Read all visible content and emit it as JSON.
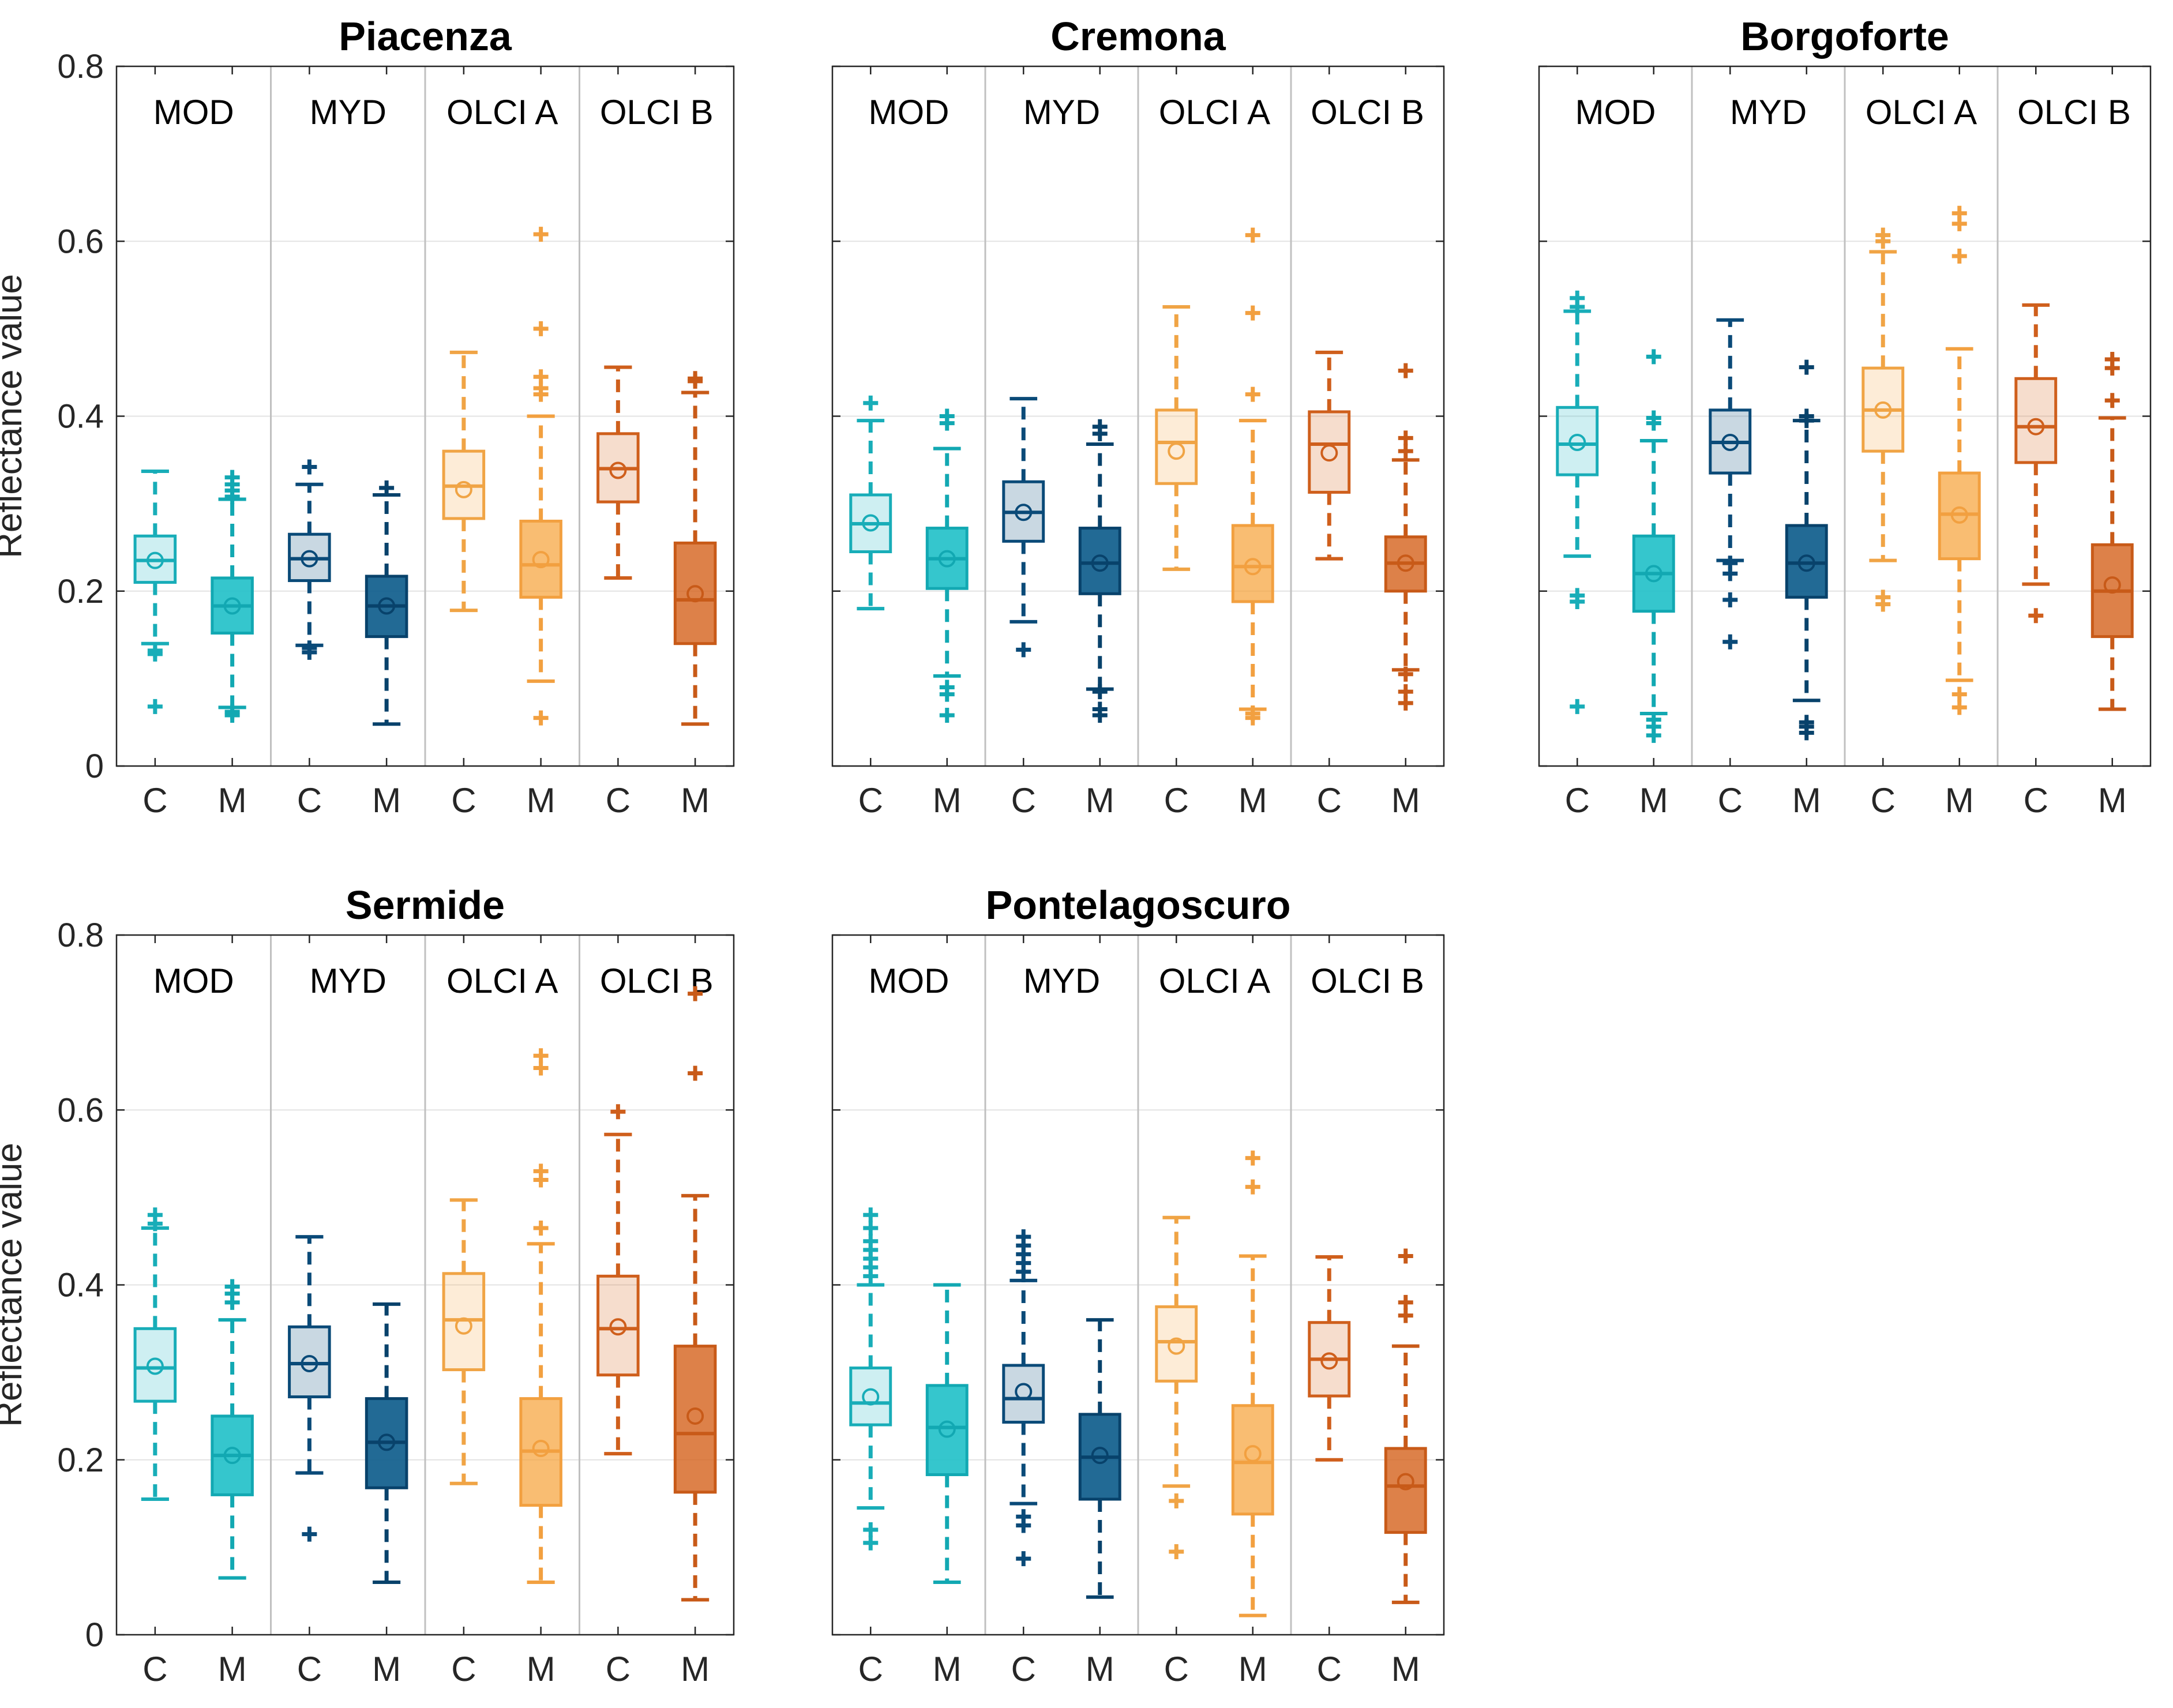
{
  "figure": {
    "ylabel": "Reflectance value",
    "group_labels": [
      "MOD",
      "MYD",
      "OLCI A",
      "OLCI B"
    ],
    "box_labels": [
      "C",
      "M"
    ]
  },
  "colors": {
    "MOD_C": "#21b8c4",
    "MOD_M": "#1fc0c8",
    "MYD_C": "#0b4d7d",
    "MYD_M": "#0a5a8a",
    "OLCIA_C": "#f5a94a",
    "OLCIA_M": "#f7a43b",
    "OLCIB_C": "#d4621c",
    "OLCIB_M": "#d4621c",
    "separator": "#c0c0c0",
    "grid": "#e3e3e3",
    "axis": "#262626"
  },
  "chart_data": [
    {
      "type": "boxplot",
      "title": "Piacenza",
      "ylabel": "Reflectance value",
      "ylim": [
        0,
        0.8
      ],
      "yticks": [
        "0",
        "0.2",
        "0.4",
        "0.6",
        "0.8"
      ],
      "categories": [
        "C",
        "M",
        "C",
        "M",
        "C",
        "M",
        "C",
        "M"
      ],
      "groups": [
        "MOD",
        "MYD",
        "OLCI A",
        "OLCI B"
      ],
      "boxes": [
        {
          "group": "MOD",
          "label": "C",
          "q1": 0.21,
          "median": 0.235,
          "q3": 0.263,
          "mean": 0.235,
          "whisker_low": 0.14,
          "whisker_high": 0.337,
          "outliers": [
            0.132,
            0.128,
            0.068
          ]
        },
        {
          "group": "MOD",
          "label": "M",
          "q1": 0.152,
          "median": 0.183,
          "q3": 0.215,
          "mean": 0.183,
          "whisker_low": 0.067,
          "whisker_high": 0.305,
          "outliers": [
            0.33,
            0.322,
            0.315,
            0.308,
            0.062,
            0.058
          ]
        },
        {
          "group": "MYD",
          "label": "C",
          "q1": 0.212,
          "median": 0.237,
          "q3": 0.265,
          "mean": 0.237,
          "whisker_low": 0.138,
          "whisker_high": 0.322,
          "outliers": [
            0.342,
            0.135,
            0.13
          ]
        },
        {
          "group": "MYD",
          "label": "M",
          "q1": 0.148,
          "median": 0.183,
          "q3": 0.217,
          "mean": 0.183,
          "whisker_low": 0.048,
          "whisker_high": 0.31,
          "outliers": [
            0.318
          ]
        },
        {
          "group": "OLCI A",
          "label": "C",
          "q1": 0.283,
          "median": 0.32,
          "q3": 0.36,
          "mean": 0.316,
          "whisker_low": 0.178,
          "whisker_high": 0.473,
          "outliers": []
        },
        {
          "group": "OLCI A",
          "label": "M",
          "q1": 0.193,
          "median": 0.23,
          "q3": 0.28,
          "mean": 0.236,
          "whisker_low": 0.097,
          "whisker_high": 0.4,
          "outliers": [
            0.608,
            0.5,
            0.445,
            0.432,
            0.425,
            0.055
          ]
        },
        {
          "group": "OLCI B",
          "label": "C",
          "q1": 0.302,
          "median": 0.34,
          "q3": 0.38,
          "mean": 0.338,
          "whisker_low": 0.215,
          "whisker_high": 0.456,
          "outliers": []
        },
        {
          "group": "OLCI B",
          "label": "M",
          "q1": 0.14,
          "median": 0.19,
          "q3": 0.255,
          "mean": 0.197,
          "whisker_low": 0.048,
          "whisker_high": 0.427,
          "outliers": [
            0.443,
            0.44
          ]
        }
      ]
    },
    {
      "type": "boxplot",
      "title": "Cremona",
      "ylabel": "",
      "ylim": [
        0,
        0.8
      ],
      "yticks": [],
      "categories": [
        "C",
        "M",
        "C",
        "M",
        "C",
        "M",
        "C",
        "M"
      ],
      "groups": [
        "MOD",
        "MYD",
        "OLCI A",
        "OLCI B"
      ],
      "boxes": [
        {
          "group": "MOD",
          "label": "C",
          "q1": 0.245,
          "median": 0.277,
          "q3": 0.31,
          "mean": 0.278,
          "whisker_low": 0.18,
          "whisker_high": 0.395,
          "outliers": [
            0.415
          ]
        },
        {
          "group": "MOD",
          "label": "M",
          "q1": 0.203,
          "median": 0.237,
          "q3": 0.272,
          "mean": 0.237,
          "whisker_low": 0.103,
          "whisker_high": 0.363,
          "outliers": [
            0.4,
            0.392,
            0.09,
            0.082,
            0.058
          ]
        },
        {
          "group": "MYD",
          "label": "C",
          "q1": 0.257,
          "median": 0.29,
          "q3": 0.325,
          "mean": 0.29,
          "whisker_low": 0.165,
          "whisker_high": 0.42,
          "outliers": [
            0.133
          ]
        },
        {
          "group": "MYD",
          "label": "M",
          "q1": 0.197,
          "median": 0.232,
          "q3": 0.272,
          "mean": 0.232,
          "whisker_low": 0.088,
          "whisker_high": 0.368,
          "outliers": [
            0.388,
            0.38,
            0.085,
            0.065,
            0.058
          ]
        },
        {
          "group": "OLCI A",
          "label": "C",
          "q1": 0.323,
          "median": 0.37,
          "q3": 0.407,
          "mean": 0.36,
          "whisker_low": 0.225,
          "whisker_high": 0.525,
          "outliers": []
        },
        {
          "group": "OLCI A",
          "label": "M",
          "q1": 0.188,
          "median": 0.228,
          "q3": 0.275,
          "mean": 0.228,
          "whisker_low": 0.065,
          "whisker_high": 0.395,
          "outliers": [
            0.607,
            0.518,
            0.425,
            0.06,
            0.055
          ]
        },
        {
          "group": "OLCI B",
          "label": "C",
          "q1": 0.313,
          "median": 0.368,
          "q3": 0.405,
          "mean": 0.358,
          "whisker_low": 0.237,
          "whisker_high": 0.473,
          "outliers": []
        },
        {
          "group": "OLCI B",
          "label": "M",
          "q1": 0.2,
          "median": 0.232,
          "q3": 0.262,
          "mean": 0.232,
          "whisker_low": 0.11,
          "whisker_high": 0.35,
          "outliers": [
            0.452,
            0.375,
            0.36,
            0.105,
            0.085,
            0.072
          ]
        }
      ]
    },
    {
      "type": "boxplot",
      "title": "Borgoforte",
      "ylabel": "",
      "ylim": [
        0,
        0.8
      ],
      "yticks": [],
      "categories": [
        "C",
        "M",
        "C",
        "M",
        "C",
        "M",
        "C",
        "M"
      ],
      "groups": [
        "MOD",
        "MYD",
        "OLCI A",
        "OLCI B"
      ],
      "boxes": [
        {
          "group": "MOD",
          "label": "C",
          "q1": 0.333,
          "median": 0.368,
          "q3": 0.41,
          "mean": 0.37,
          "whisker_low": 0.24,
          "whisker_high": 0.52,
          "outliers": [
            0.535,
            0.525,
            0.195,
            0.188,
            0.068
          ]
        },
        {
          "group": "MOD",
          "label": "M",
          "q1": 0.177,
          "median": 0.22,
          "q3": 0.263,
          "mean": 0.22,
          "whisker_low": 0.06,
          "whisker_high": 0.372,
          "outliers": [
            0.468,
            0.398,
            0.392,
            0.053,
            0.045,
            0.035
          ]
        },
        {
          "group": "MYD",
          "label": "C",
          "q1": 0.335,
          "median": 0.37,
          "q3": 0.407,
          "mean": 0.37,
          "whisker_low": 0.235,
          "whisker_high": 0.51,
          "outliers": [
            0.232,
            0.22,
            0.19,
            0.142
          ]
        },
        {
          "group": "MYD",
          "label": "M",
          "q1": 0.193,
          "median": 0.232,
          "q3": 0.275,
          "mean": 0.232,
          "whisker_low": 0.075,
          "whisker_high": 0.395,
          "outliers": [
            0.456,
            0.4,
            0.395,
            0.05,
            0.045,
            0.038
          ]
        },
        {
          "group": "OLCI A",
          "label": "C",
          "q1": 0.36,
          "median": 0.407,
          "q3": 0.455,
          "mean": 0.407,
          "whisker_low": 0.235,
          "whisker_high": 0.588,
          "outliers": [
            0.607,
            0.6,
            0.193,
            0.185
          ]
        },
        {
          "group": "OLCI A",
          "label": "M",
          "q1": 0.237,
          "median": 0.288,
          "q3": 0.335,
          "mean": 0.287,
          "whisker_low": 0.098,
          "whisker_high": 0.477,
          "outliers": [
            0.632,
            0.62,
            0.583,
            0.082,
            0.067
          ]
        },
        {
          "group": "OLCI B",
          "label": "C",
          "q1": 0.347,
          "median": 0.388,
          "q3": 0.443,
          "mean": 0.388,
          "whisker_low": 0.208,
          "whisker_high": 0.527,
          "outliers": [
            0.172
          ]
        },
        {
          "group": "OLCI B",
          "label": "M",
          "q1": 0.148,
          "median": 0.2,
          "q3": 0.253,
          "mean": 0.207,
          "whisker_low": 0.065,
          "whisker_high": 0.398,
          "outliers": [
            0.465,
            0.455,
            0.418
          ]
        }
      ]
    },
    {
      "type": "boxplot",
      "title": "Sermide",
      "ylabel": "Reflectance value",
      "ylim": [
        0,
        0.8
      ],
      "yticks": [
        "0",
        "0.2",
        "0.4",
        "0.6",
        "0.8"
      ],
      "categories": [
        "C",
        "M",
        "C",
        "M",
        "C",
        "M",
        "C",
        "M"
      ],
      "groups": [
        "MOD",
        "MYD",
        "OLCI A",
        "OLCI B"
      ],
      "boxes": [
        {
          "group": "MOD",
          "label": "C",
          "q1": 0.267,
          "median": 0.305,
          "q3": 0.35,
          "mean": 0.307,
          "whisker_low": 0.155,
          "whisker_high": 0.465,
          "outliers": [
            0.48,
            0.47
          ]
        },
        {
          "group": "MOD",
          "label": "M",
          "q1": 0.16,
          "median": 0.205,
          "q3": 0.25,
          "mean": 0.205,
          "whisker_low": 0.065,
          "whisker_high": 0.36,
          "outliers": [
            0.398,
            0.39,
            0.38
          ]
        },
        {
          "group": "MYD",
          "label": "C",
          "q1": 0.272,
          "median": 0.31,
          "q3": 0.352,
          "mean": 0.31,
          "whisker_low": 0.185,
          "whisker_high": 0.455,
          "outliers": [
            0.115
          ]
        },
        {
          "group": "MYD",
          "label": "M",
          "q1": 0.168,
          "median": 0.22,
          "q3": 0.27,
          "mean": 0.22,
          "whisker_low": 0.06,
          "whisker_high": 0.378,
          "outliers": []
        },
        {
          "group": "OLCI A",
          "label": "C",
          "q1": 0.303,
          "median": 0.36,
          "q3": 0.413,
          "mean": 0.353,
          "whisker_low": 0.173,
          "whisker_high": 0.497,
          "outliers": []
        },
        {
          "group": "OLCI A",
          "label": "M",
          "q1": 0.148,
          "median": 0.21,
          "q3": 0.27,
          "mean": 0.213,
          "whisker_low": 0.06,
          "whisker_high": 0.447,
          "outliers": [
            0.662,
            0.648,
            0.53,
            0.52,
            0.465
          ]
        },
        {
          "group": "OLCI B",
          "label": "C",
          "q1": 0.297,
          "median": 0.35,
          "q3": 0.41,
          "mean": 0.352,
          "whisker_low": 0.207,
          "whisker_high": 0.572,
          "outliers": [
            0.598
          ]
        },
        {
          "group": "OLCI B",
          "label": "M",
          "q1": 0.163,
          "median": 0.23,
          "q3": 0.33,
          "mean": 0.25,
          "whisker_low": 0.04,
          "whisker_high": 0.502,
          "outliers": [
            0.733,
            0.642
          ]
        }
      ]
    },
    {
      "type": "boxplot",
      "title": "Pontelagoscuro",
      "ylabel": "",
      "ylim": [
        0,
        0.8
      ],
      "yticks": [],
      "categories": [
        "C",
        "M",
        "C",
        "M",
        "C",
        "M",
        "C",
        "M"
      ],
      "groups": [
        "MOD",
        "MYD",
        "OLCI A",
        "OLCI B"
      ],
      "boxes": [
        {
          "group": "MOD",
          "label": "C",
          "q1": 0.24,
          "median": 0.265,
          "q3": 0.305,
          "mean": 0.272,
          "whisker_low": 0.145,
          "whisker_high": 0.4,
          "outliers": [
            0.48,
            0.465,
            0.45,
            0.44,
            0.43,
            0.42,
            0.41,
            0.12,
            0.105
          ]
        },
        {
          "group": "MOD",
          "label": "M",
          "q1": 0.183,
          "median": 0.237,
          "q3": 0.285,
          "mean": 0.235,
          "whisker_low": 0.06,
          "whisker_high": 0.4,
          "outliers": []
        },
        {
          "group": "MYD",
          "label": "C",
          "q1": 0.243,
          "median": 0.27,
          "q3": 0.308,
          "mean": 0.278,
          "whisker_low": 0.15,
          "whisker_high": 0.405,
          "outliers": [
            0.455,
            0.445,
            0.435,
            0.425,
            0.415,
            0.135,
            0.125,
            0.087
          ]
        },
        {
          "group": "MYD",
          "label": "M",
          "q1": 0.155,
          "median": 0.203,
          "q3": 0.252,
          "mean": 0.205,
          "whisker_low": 0.043,
          "whisker_high": 0.36,
          "outliers": []
        },
        {
          "group": "OLCI A",
          "label": "C",
          "q1": 0.29,
          "median": 0.335,
          "q3": 0.375,
          "mean": 0.33,
          "whisker_low": 0.17,
          "whisker_high": 0.477,
          "outliers": [
            0.153,
            0.095
          ]
        },
        {
          "group": "OLCI A",
          "label": "M",
          "q1": 0.138,
          "median": 0.197,
          "q3": 0.262,
          "mean": 0.207,
          "whisker_low": 0.022,
          "whisker_high": 0.433,
          "outliers": [
            0.545,
            0.512
          ]
        },
        {
          "group": "OLCI B",
          "label": "C",
          "q1": 0.273,
          "median": 0.315,
          "q3": 0.357,
          "mean": 0.313,
          "whisker_low": 0.2,
          "whisker_high": 0.432,
          "outliers": []
        },
        {
          "group": "OLCI B",
          "label": "M",
          "q1": 0.117,
          "median": 0.17,
          "q3": 0.213,
          "mean": 0.175,
          "whisker_low": 0.037,
          "whisker_high": 0.33,
          "outliers": [
            0.433,
            0.38,
            0.365
          ]
        }
      ]
    }
  ]
}
